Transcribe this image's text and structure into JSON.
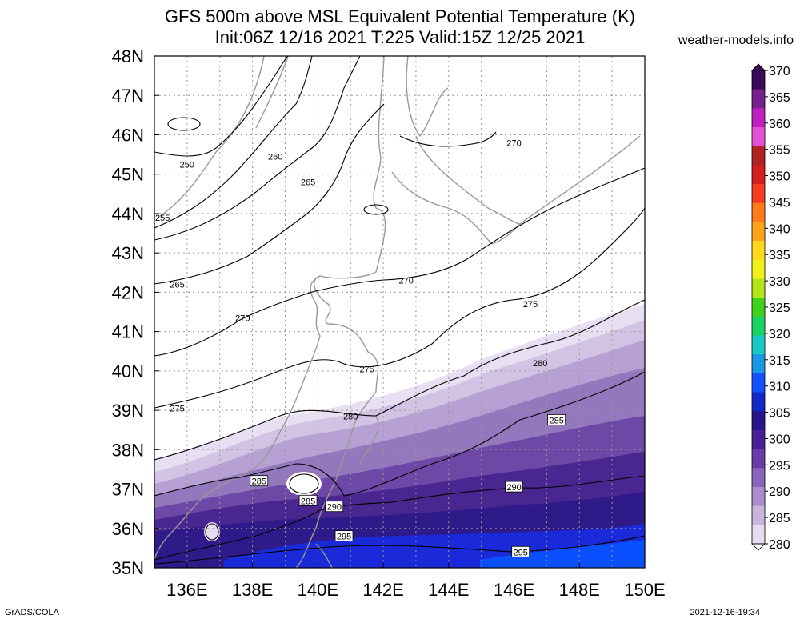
{
  "header": {
    "title_line_1": "GFS 500m above MSL Equivalent Potential Temperature (K)",
    "title_line_2": "Init:06Z 12/16 2021 T:225 Valid:15Z 12/25 2021",
    "credit": "weather-models.info"
  },
  "footer": {
    "software": "GrADS/COLA",
    "timestamp": "2021-12-16-19:34"
  },
  "map": {
    "lat_labels": [
      "48N",
      "47N",
      "46N",
      "45N",
      "44N",
      "43N",
      "42N",
      "41N",
      "40N",
      "39N",
      "38N",
      "37N",
      "36N",
      "35N"
    ],
    "lon_labels": [
      "136E",
      "138E",
      "140E",
      "142E",
      "144E",
      "146E",
      "148E",
      "150E"
    ],
    "lat_range": [
      35,
      48
    ],
    "lon_range": [
      135,
      150
    ],
    "contour_labels": [
      {
        "text": "250",
        "lon": 136.0,
        "lat": 45.25
      },
      {
        "text": "255",
        "lon": 135.25,
        "lat": 43.9
      },
      {
        "text": "260",
        "lon": 138.7,
        "lat": 45.45
      },
      {
        "text": "265",
        "lon": 139.7,
        "lat": 44.8
      },
      {
        "text": "265",
        "lon": 135.7,
        "lat": 42.2
      },
      {
        "text": "270",
        "lon": 146.0,
        "lat": 45.8
      },
      {
        "text": "270",
        "lon": 142.7,
        "lat": 42.3
      },
      {
        "text": "270",
        "lon": 137.7,
        "lat": 41.35
      },
      {
        "text": "275",
        "lon": 146.5,
        "lat": 41.7
      },
      {
        "text": "275",
        "lon": 141.5,
        "lat": 40.05
      },
      {
        "text": "275",
        "lon": 135.7,
        "lat": 39.05
      },
      {
        "text": "280",
        "lon": 146.8,
        "lat": 40.2
      },
      {
        "text": "280",
        "lon": 141.0,
        "lat": 38.85
      },
      {
        "text": "285",
        "lon": 147.3,
        "lat": 38.75
      },
      {
        "text": "285",
        "lon": 138.2,
        "lat": 37.2
      },
      {
        "text": "285",
        "lon": 139.7,
        "lat": 36.7
      },
      {
        "text": "290",
        "lon": 146.0,
        "lat": 37.05
      },
      {
        "text": "290",
        "lon": 140.5,
        "lat": 36.55
      },
      {
        "text": "295",
        "lon": 140.8,
        "lat": 35.8
      },
      {
        "text": "295",
        "lon": 146.2,
        "lat": 35.4
      }
    ]
  },
  "colorbar": {
    "labels": [
      "370",
      "365",
      "360",
      "355",
      "350",
      "345",
      "340",
      "335",
      "330",
      "325",
      "320",
      "315",
      "310",
      "305",
      "300",
      "295",
      "290",
      "285",
      "280"
    ],
    "colors": [
      "#3b0a5a",
      "#7a1f8e",
      "#c21fc2",
      "#e64fd8",
      "#b22222",
      "#d21f1f",
      "#f53c1c",
      "#ff7a1a",
      "#ffa41a",
      "#ffd91a",
      "#f2f21a",
      "#b2e61a",
      "#40d21a",
      "#1ad264",
      "#1ac8c8",
      "#1a96e6",
      "#1450ff",
      "#1428c8",
      "#2a148c",
      "#4a1e96",
      "#6a3ca8",
      "#8a64ba",
      "#aa8ccc",
      "#c8b4dc",
      "#e6dcf0"
    ]
  }
}
